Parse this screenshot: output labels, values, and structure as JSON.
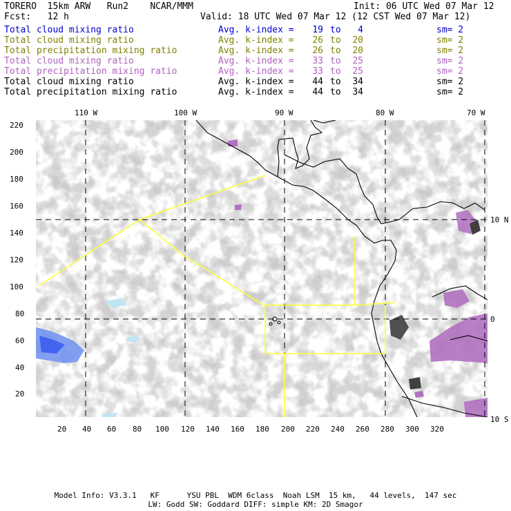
{
  "header": {
    "model": "TORERO  15km ARW   Run2    NCAR/MMM",
    "init": "Init: 06 UTC Wed 07 Mar 12",
    "fcst": "Fcst:   12 h",
    "valid": "Valid: 18 UTC Wed 07 Mar 12 (12 CST Wed 07 Mar 12)"
  },
  "legend": [
    {
      "label": "Total cloud mixing ratio",
      "avg": "Avg. k-index =",
      "hi": "19",
      "to": "to",
      "lo": "4",
      "sm": "sm= 2",
      "color": "#0000cc"
    },
    {
      "label": "Total cloud mixing ratio",
      "avg": "Avg. k-index =",
      "hi": "26",
      "to": "to",
      "lo": "20",
      "sm": "sm= 2",
      "color": "#808000"
    },
    {
      "label": "Total precipitation mixing ratio",
      "avg": "Avg. k-index =",
      "hi": "26",
      "to": "to",
      "lo": "20",
      "sm": "sm= 2",
      "color": "#808000"
    },
    {
      "label": "Total cloud mixing ratio",
      "avg": "Avg. k-index =",
      "hi": "33",
      "to": "to",
      "lo": "25",
      "sm": "sm= 2",
      "color": "#b060c0"
    },
    {
      "label": "Total precipitation mixing ratio",
      "avg": "Avg. k-index =",
      "hi": "33",
      "to": "to",
      "lo": "25",
      "sm": "sm= 2",
      "color": "#b060c0"
    },
    {
      "label": "Total cloud mixing ratio",
      "avg": "Avg. k-index =",
      "hi": "44",
      "to": "to",
      "lo": "34",
      "sm": "sm= 2",
      "color": "#000000"
    },
    {
      "label": "Total precipitation mixing ratio",
      "avg": "Avg. k-index =",
      "hi": "44",
      "to": "to",
      "lo": "34",
      "sm": "sm= 2",
      "color": "#000000"
    }
  ],
  "map": {
    "lon_labels": [
      "110 W",
      "100 W",
      "90 W",
      "80 W",
      "70 W"
    ],
    "lat_labels": [
      "10 N",
      "0",
      "10 S"
    ],
    "x_ticks": [
      "20",
      "40",
      "60",
      "80",
      "100",
      "120",
      "140",
      "160",
      "180",
      "200",
      "220",
      "240",
      "260",
      "280",
      "300",
      "320"
    ],
    "y_ticks": [
      "20",
      "40",
      "60",
      "80",
      "100",
      "120",
      "140",
      "160",
      "180",
      "200",
      "220"
    ],
    "colors": {
      "cloud_gray": "#a9a9a9",
      "magenta": "#b070c0",
      "blue": "#3355ee",
      "light_blue": "#bfe6f2",
      "box": "#ffff33",
      "coast": "#000000"
    }
  },
  "footer": {
    "line1": "Model Info: V3.3.1   KF      YSU PBL  WDM 6class  Noah LSM  15 km,   44 levels,  147 sec",
    "line2": "LW: Godd SW: Goddard DIFF: simple KM: 2D Smagor"
  }
}
